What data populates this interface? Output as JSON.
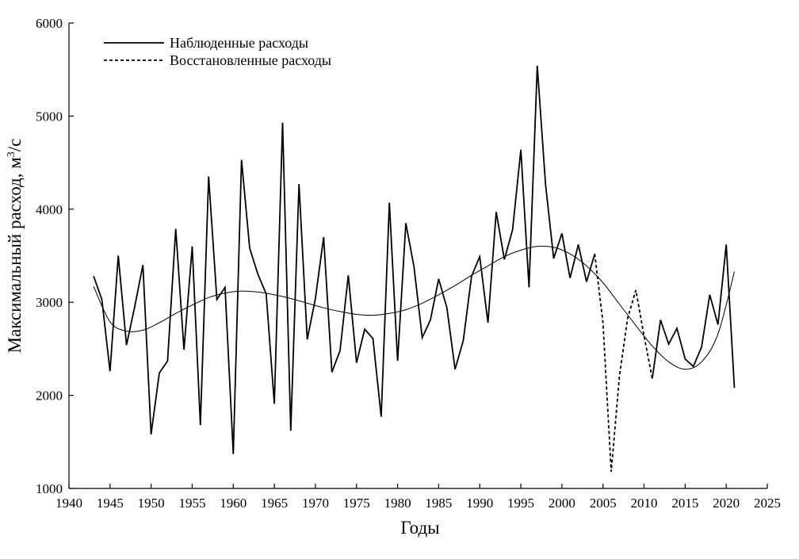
{
  "chart_data": {
    "type": "line",
    "xlabel": "Годы",
    "ylabel_main": "Максимальный расход, м",
    "ylabel_sup": "3",
    "ylabel_tail": "/с",
    "xlim": [
      1940,
      2025
    ],
    "ylim": [
      1000,
      6000
    ],
    "xticks": [
      1940,
      1945,
      1950,
      1955,
      1960,
      1965,
      1970,
      1975,
      1980,
      1985,
      1990,
      1995,
      2000,
      2005,
      2010,
      2015,
      2020,
      2025
    ],
    "yticks": [
      1000,
      2000,
      3000,
      4000,
      5000,
      6000
    ],
    "grid": false,
    "legend_position": "top-left",
    "colors": {
      "line": "#000000",
      "axis": "#000000",
      "background": "#ffffff"
    },
    "series": [
      {
        "name": "Наблюденные расходы",
        "style": "solid",
        "x": [
          1943,
          1944,
          1945,
          1946,
          1947,
          1948,
          1949,
          1950,
          1951,
          1952,
          1953,
          1954,
          1955,
          1956,
          1957,
          1958,
          1959,
          1960,
          1961,
          1962,
          1963,
          1964,
          1965,
          1966,
          1967,
          1968,
          1969,
          1970,
          1971,
          1972,
          1973,
          1974,
          1975,
          1976,
          1977,
          1978,
          1979,
          1980,
          1981,
          1982,
          1983,
          1984,
          1985,
          1986,
          1987,
          1988,
          1989,
          1990,
          1991,
          1992,
          1993,
          1994,
          1995,
          1996,
          1997,
          1998,
          1999,
          2000,
          2001,
          2002,
          2003,
          2004
        ],
        "y": [
          3280,
          3030,
          2260,
          3500,
          2540,
          2950,
          3400,
          1580,
          2240,
          2370,
          3790,
          2490,
          3600,
          1680,
          4350,
          3030,
          3160,
          1370,
          4530,
          3580,
          3300,
          3090,
          1910,
          4930,
          1620,
          4270,
          2600,
          3040,
          3700,
          2250,
          2480,
          3290,
          2350,
          2710,
          2610,
          1770,
          4070,
          2370,
          3850,
          3380,
          2620,
          2810,
          3250,
          2940,
          2280,
          2590,
          3280,
          3490,
          2780,
          3970,
          3460,
          3780,
          4640,
          3160,
          5540,
          4270,
          3470,
          3740,
          3260,
          3620,
          3220,
          3520
        ]
      },
      {
        "name": "Восстановленные расходы",
        "style": "dashed",
        "x": [
          2004,
          2005,
          2006,
          2007,
          2008,
          2009,
          2010,
          2011
        ],
        "y": [
          3520,
          2780,
          1180,
          2200,
          2830,
          3130,
          2640,
          2180
        ]
      },
      {
        "name": "",
        "style": "solid",
        "x": [
          2011,
          2012,
          2013,
          2014,
          2015,
          2016,
          2017,
          2018,
          2019,
          2020,
          2021
        ],
        "y": [
          2180,
          2810,
          2550,
          2720,
          2390,
          2310,
          2520,
          3080,
          2760,
          3620,
          2080
        ]
      },
      {
        "name": "",
        "style": "trend",
        "x": [
          1943,
          1945,
          1947,
          1949,
          1951,
          1953,
          1955,
          1957,
          1959,
          1961,
          1963,
          1965,
          1967,
          1969,
          1971,
          1973,
          1975,
          1977,
          1979,
          1981,
          1983,
          1985,
          1987,
          1989,
          1991,
          1993,
          1995,
          1997,
          1999,
          2001,
          2003,
          2005,
          2007,
          2009,
          2011,
          2013,
          2015,
          2017,
          2019,
          2021
        ],
        "y": [
          3170,
          2790,
          2690,
          2700,
          2780,
          2880,
          2970,
          3050,
          3100,
          3120,
          3110,
          3080,
          3040,
          2990,
          2940,
          2900,
          2870,
          2860,
          2880,
          2920,
          2990,
          3080,
          3180,
          3290,
          3390,
          3490,
          3560,
          3600,
          3590,
          3520,
          3390,
          3210,
          2980,
          2750,
          2530,
          2360,
          2280,
          2360,
          2660,
          3330
        ]
      }
    ]
  }
}
